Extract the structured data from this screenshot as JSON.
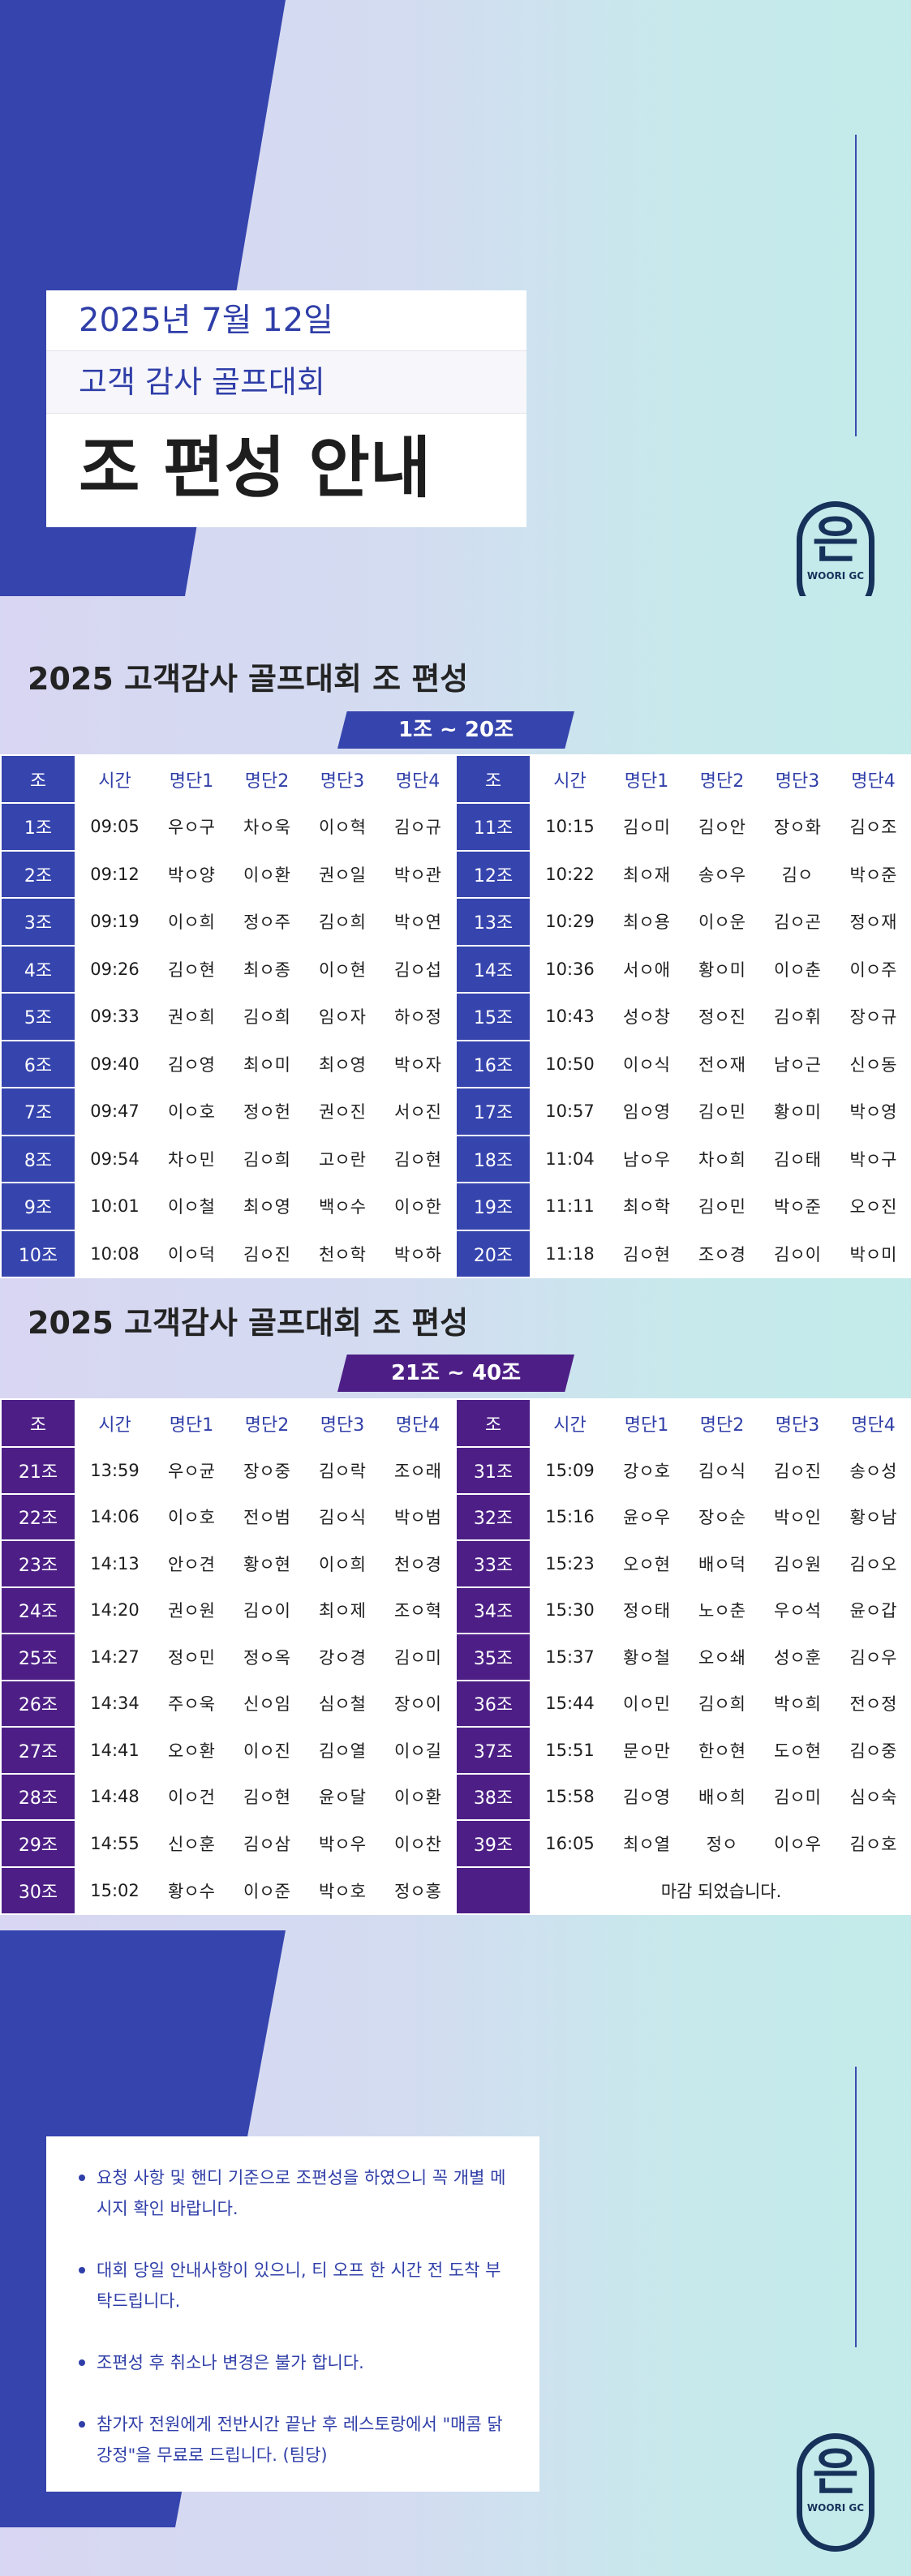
{
  "hero": {
    "date": "2025년 7월 12일",
    "subtitle": "고객 감사 골프대회",
    "title": "조 편성 안내",
    "logo_text": "WOORI GC",
    "logo_glyph": "은"
  },
  "colors": {
    "blue": "#3644ad",
    "purple": "#4d1f86",
    "text_blue": "#2f3ea8"
  },
  "headers": [
    "조",
    "시간",
    "명단1",
    "명단2",
    "명단3",
    "명단4",
    "조",
    "시간",
    "명단1",
    "명단2",
    "명단3",
    "명단4"
  ],
  "section1": {
    "title": "2025 고객감사 골프대회 조 편성",
    "range": "1조 ~ 20조",
    "rows": [
      [
        [
          "1조",
          "09:05",
          "우ㅇ구",
          "차ㅇ욱",
          "이ㅇ혁",
          "김ㅇ규"
        ],
        [
          "11조",
          "10:15",
          "김ㅇ미",
          "김ㅇ안",
          "장ㅇ화",
          "김ㅇ조"
        ]
      ],
      [
        [
          "2조",
          "09:12",
          "박ㅇ양",
          "이ㅇ환",
          "권ㅇ일",
          "박ㅇ관"
        ],
        [
          "12조",
          "10:22",
          "최ㅇ재",
          "송ㅇ우",
          "김ㅇ",
          "박ㅇ준"
        ]
      ],
      [
        [
          "3조",
          "09:19",
          "이ㅇ희",
          "정ㅇ주",
          "김ㅇ희",
          "박ㅇ연"
        ],
        [
          "13조",
          "10:29",
          "최ㅇ용",
          "이ㅇ운",
          "김ㅇ곤",
          "정ㅇ재"
        ]
      ],
      [
        [
          "4조",
          "09:26",
          "김ㅇ현",
          "최ㅇ종",
          "이ㅇ현",
          "김ㅇ섭"
        ],
        [
          "14조",
          "10:36",
          "서ㅇ애",
          "황ㅇ미",
          "이ㅇ춘",
          "이ㅇ주"
        ]
      ],
      [
        [
          "5조",
          "09:33",
          "권ㅇ희",
          "김ㅇ희",
          "임ㅇ자",
          "하ㅇ정"
        ],
        [
          "15조",
          "10:43",
          "성ㅇ창",
          "정ㅇ진",
          "김ㅇ휘",
          "장ㅇ규"
        ]
      ],
      [
        [
          "6조",
          "09:40",
          "김ㅇ영",
          "최ㅇ미",
          "최ㅇ영",
          "박ㅇ자"
        ],
        [
          "16조",
          "10:50",
          "이ㅇ식",
          "전ㅇ재",
          "남ㅇ근",
          "신ㅇ동"
        ]
      ],
      [
        [
          "7조",
          "09:47",
          "이ㅇ호",
          "정ㅇ헌",
          "권ㅇ진",
          "서ㅇ진"
        ],
        [
          "17조",
          "10:57",
          "임ㅇ영",
          "김ㅇ민",
          "황ㅇ미",
          "박ㅇ영"
        ]
      ],
      [
        [
          "8조",
          "09:54",
          "차ㅇ민",
          "김ㅇ희",
          "고ㅇ란",
          "김ㅇ현"
        ],
        [
          "18조",
          "11:04",
          "남ㅇ우",
          "차ㅇ희",
          "김ㅇ태",
          "박ㅇ구"
        ]
      ],
      [
        [
          "9조",
          "10:01",
          "이ㅇ철",
          "최ㅇ영",
          "백ㅇ수",
          "이ㅇ한"
        ],
        [
          "19조",
          "11:11",
          "최ㅇ학",
          "김ㅇ민",
          "박ㅇ준",
          "오ㅇ진"
        ]
      ],
      [
        [
          "10조",
          "10:08",
          "이ㅇ덕",
          "김ㅇ진",
          "천ㅇ학",
          "박ㅇ하"
        ],
        [
          "20조",
          "11:18",
          "김ㅇ현",
          "조ㅇ경",
          "김ㅇ이",
          "박ㅇ미"
        ]
      ]
    ]
  },
  "section2": {
    "title": "2025 고객감사 골프대회 조 편성",
    "range": "21조 ~ 40조",
    "rows": [
      [
        [
          "21조",
          "13:59",
          "우ㅇ균",
          "장ㅇ중",
          "김ㅇ락",
          "조ㅇ래"
        ],
        [
          "31조",
          "15:09",
          "강ㅇ호",
          "김ㅇ식",
          "김ㅇ진",
          "송ㅇ성"
        ]
      ],
      [
        [
          "22조",
          "14:06",
          "이ㅇ호",
          "전ㅇ범",
          "김ㅇ식",
          "박ㅇ범"
        ],
        [
          "32조",
          "15:16",
          "윤ㅇ우",
          "장ㅇ순",
          "박ㅇ인",
          "황ㅇ남"
        ]
      ],
      [
        [
          "23조",
          "14:13",
          "안ㅇ견",
          "황ㅇ현",
          "이ㅇ희",
          "천ㅇ경"
        ],
        [
          "33조",
          "15:23",
          "오ㅇ현",
          "배ㅇ덕",
          "김ㅇ원",
          "김ㅇ오"
        ]
      ],
      [
        [
          "24조",
          "14:20",
          "권ㅇ원",
          "김ㅇ이",
          "최ㅇ제",
          "조ㅇ혁"
        ],
        [
          "34조",
          "15:30",
          "정ㅇ태",
          "노ㅇ춘",
          "우ㅇ석",
          "윤ㅇ갑"
        ]
      ],
      [
        [
          "25조",
          "14:27",
          "정ㅇ민",
          "정ㅇ옥",
          "강ㅇ경",
          "김ㅇ미"
        ],
        [
          "35조",
          "15:37",
          "황ㅇ철",
          "오ㅇ쇄",
          "성ㅇ훈",
          "김ㅇ우"
        ]
      ],
      [
        [
          "26조",
          "14:34",
          "주ㅇ욱",
          "신ㅇ임",
          "심ㅇ철",
          "장ㅇ이"
        ],
        [
          "36조",
          "15:44",
          "이ㅇ민",
          "김ㅇ희",
          "박ㅇ희",
          "전ㅇ정"
        ]
      ],
      [
        [
          "27조",
          "14:41",
          "오ㅇ환",
          "이ㅇ진",
          "김ㅇ열",
          "이ㅇ길"
        ],
        [
          "37조",
          "15:51",
          "문ㅇ만",
          "한ㅇ현",
          "도ㅇ현",
          "김ㅇ중"
        ]
      ],
      [
        [
          "28조",
          "14:48",
          "이ㅇ건",
          "김ㅇ현",
          "윤ㅇ달",
          "이ㅇ환"
        ],
        [
          "38조",
          "15:58",
          "김ㅇ영",
          "배ㅇ희",
          "김ㅇ미",
          "심ㅇ숙"
        ]
      ],
      [
        [
          "29조",
          "14:55",
          "신ㅇ훈",
          "김ㅇ삼",
          "박ㅇ우",
          "이ㅇ찬"
        ],
        [
          "39조",
          "16:05",
          "최ㅇ열",
          "정ㅇ",
          "이ㅇ우",
          "김ㅇ호"
        ]
      ]
    ],
    "last_row": {
      "left": [
        "30조",
        "15:02",
        "황ㅇ수",
        "이ㅇ준",
        "박ㅇ호",
        "정ㅇ홍"
      ],
      "closed_text": "마감 되었습니다."
    }
  },
  "notice": [
    "요청 사항 및 핸디 기준으로 조편성을 하였으니 꼭 개별 메시지 확인 바랍니다.",
    "대회 당일 안내사항이 있으니, 티 오프 한 시간 전 도착 부탁드립니다.",
    "조편성 후 취소나 변경은 불가 합니다.",
    "참가자 전원에게 전반시간 끝난 후 레스토랑에서 \"매콤 닭강정\"을 무료로 드립니다. (팀당)"
  ]
}
